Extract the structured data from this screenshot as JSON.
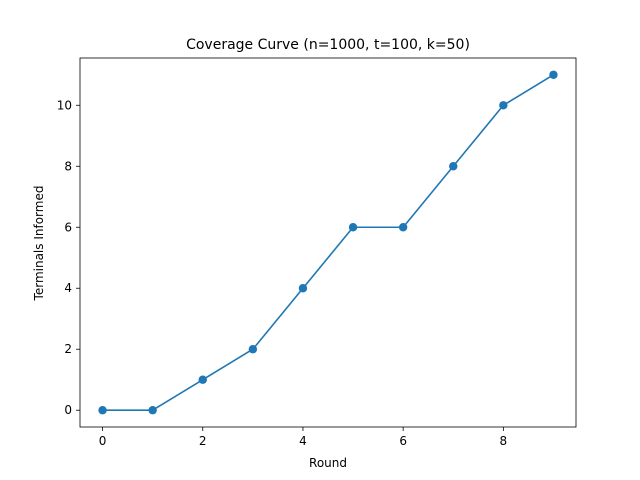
{
  "chart_data": {
    "type": "line",
    "title": "Coverage Curve (n=1000, t=100, k=50)",
    "xlabel": "Round",
    "ylabel": "Terminals Informed",
    "x": [
      0,
      1,
      2,
      3,
      4,
      5,
      6,
      7,
      8,
      9
    ],
    "series": [
      {
        "values": [
          0,
          0,
          1,
          2,
          4,
          6,
          6,
          8,
          10,
          11
        ],
        "color": "#1f77b4",
        "marker": "circle"
      }
    ],
    "xlim": [
      -0.45,
      9.45
    ],
    "ylim": [
      -0.55,
      11.55
    ],
    "xticks": [
      0,
      2,
      4,
      6,
      8
    ],
    "yticks": [
      0,
      2,
      4,
      6,
      8,
      10
    ],
    "grid": false,
    "legend": "none"
  }
}
